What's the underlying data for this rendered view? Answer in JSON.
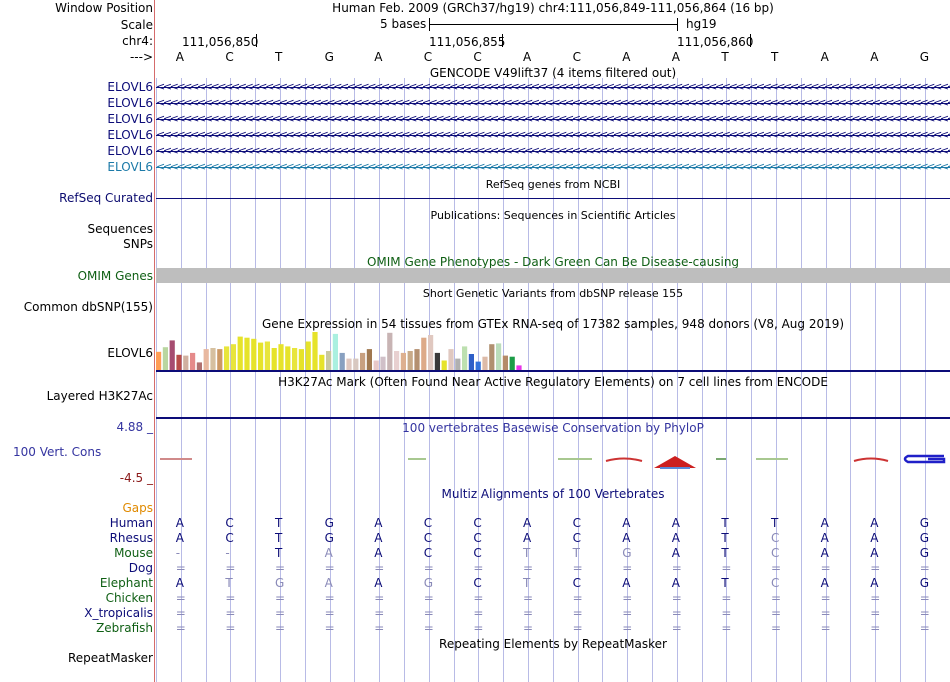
{
  "header": {
    "window_position_label": "Window Position",
    "window_position_value": "Human Feb. 2009 (GRCh37/hg19)   chr4:111,056,849-111,056,864 (16 bp)",
    "scale_label": "Scale",
    "scale_text": "5 bases",
    "scale_assembly": "hg19",
    "chrom_label": "chr4:",
    "ticks": [
      "111,056,850",
      "111,056,855",
      "111,056,860"
    ],
    "strand_label": "--->",
    "bases": [
      "A",
      "C",
      "T",
      "G",
      "A",
      "C",
      "C",
      "A",
      "C",
      "A",
      "A",
      "T",
      "T",
      "A",
      "A",
      "G"
    ]
  },
  "tracks": {
    "gencode": {
      "title": "GENCODE V49lift37 (4 items filtered out)",
      "items": [
        {
          "name": "ELOVL6",
          "color": "#0c0c78"
        },
        {
          "name": "ELOVL6",
          "color": "#0c0c78"
        },
        {
          "name": "ELOVL6",
          "color": "#0c0c78"
        },
        {
          "name": "ELOVL6",
          "color": "#0c0c78"
        },
        {
          "name": "ELOVL6",
          "color": "#0c0c78"
        },
        {
          "name": "ELOVL6",
          "color": "#1c7aa8"
        }
      ]
    },
    "refseq": {
      "title": "RefSeq genes from NCBI",
      "label": "RefSeq Curated"
    },
    "publications": {
      "title": "Publications: Sequences in Scientific Articles",
      "labels": [
        "Sequences",
        "SNPs"
      ]
    },
    "omim": {
      "title": "OMIM Gene Phenotypes - Dark Green Can Be Disease-causing",
      "label": "OMIM Genes"
    },
    "dbsnp": {
      "title": "Short Genetic Variants from dbSNP release 155",
      "label": "Common dbSNP(155)"
    },
    "gtex": {
      "title": "Gene Expression in 54 tissues from GTEx RNA-seq of 17382 samples, 948 donors (V8, Aug 2019)",
      "label": "ELOVL6",
      "values": [
        0.48,
        0.6,
        0.78,
        0.4,
        0.38,
        0.45,
        0.2,
        0.55,
        0.58,
        0.55,
        0.62,
        0.68,
        0.88,
        0.85,
        0.82,
        0.72,
        0.75,
        0.58,
        0.68,
        0.62,
        0.58,
        0.55,
        0.75,
        1.0,
        0.4,
        0.5,
        0.95,
        0.45,
        0.3,
        0.3,
        0.45,
        0.55,
        0.25,
        0.35,
        0.98,
        0.5,
        0.45,
        0.5,
        0.55,
        0.85,
        0.92,
        0.45,
        0.25,
        0.55,
        0.3,
        0.62,
        0.42,
        0.22,
        0.35,
        0.68,
        0.7,
        0.38,
        0.35,
        0.12
      ],
      "colors": [
        "#ff9d55",
        "#b9d6a0",
        "#a64c70",
        "#b84c48",
        "#d0b0a0",
        "#e58a8a",
        "#b07070",
        "#e8b8a0",
        "#d6c0a0",
        "#cc9966",
        "#e8e53c",
        "#e8e53c",
        "#e6e32a",
        "#e6e32a",
        "#e6e32a",
        "#e6e32a",
        "#e8e53c",
        "#e6e32a",
        "#e6e32a",
        "#e6e32a",
        "#e8e53c",
        "#e6e32a",
        "#e6e32a",
        "#e6e32a",
        "#e6e32a",
        "#c8c8a0",
        "#aaf0e0",
        "#88a0c0",
        "#e0c8c0",
        "#d8c8c0",
        "#c8a080",
        "#a07850",
        "#e8c8c8",
        "#d0c0c8",
        "#c8b4b4",
        "#e8d0d0",
        "#ddb090",
        "#c8aa88",
        "#b49070",
        "#ddaa88",
        "#e0c8c0",
        "#3a3a3a",
        "#e6e32a",
        "#e0c8c0",
        "#b0b0b0",
        "#bde0b0",
        "#2e5fc8",
        "#3373dc",
        "#ddbba8",
        "#b09070",
        "#bbddbb",
        "#b48a68",
        "#1c9c48",
        "#e834e8"
      ]
    },
    "h3k27ac": {
      "title": "H3K27Ac Mark (Often Found Near Active Regulatory Elements) on 7 cell lines from ENCODE",
      "label": "Layered H3K27Ac"
    },
    "phylop": {
      "title": "100 vertebrates Basewise Conservation by PhyloP",
      "label": "100 Vert. Cons",
      "max_label": "4.88 _",
      "min_label": "-4.5 _"
    },
    "multiz": {
      "title": "Multiz Alignments of 100 Vertebrates",
      "gaps_label": "Gaps",
      "species": [
        {
          "name": "Human",
          "color": "#0c0c78",
          "seq": [
            "A",
            "C",
            "T",
            "G",
            "A",
            "C",
            "C",
            "A",
            "C",
            "A",
            "A",
            "T",
            "T",
            "A",
            "A",
            "G"
          ],
          "faint": []
        },
        {
          "name": "Rhesus",
          "color": "#0c0c78",
          "seq": [
            "A",
            "C",
            "T",
            "G",
            "A",
            "C",
            "C",
            "A",
            "C",
            "A",
            "A",
            "T",
            "C",
            "A",
            "A",
            "G"
          ],
          "faint": [
            12
          ]
        },
        {
          "name": "Mouse",
          "color": "#0f5f14",
          "seq": [
            "-",
            "-",
            "T",
            "A",
            "A",
            "C",
            "C",
            "T",
            "T",
            "G",
            "A",
            "T",
            "C",
            "A",
            "A",
            "G"
          ],
          "faint": [
            0,
            1,
            3,
            7,
            8,
            9,
            12
          ]
        },
        {
          "name": "Dog",
          "color": "#0c0c78",
          "seq": [
            "=",
            "=",
            "=",
            "=",
            "=",
            "=",
            "=",
            "=",
            "=",
            "=",
            "=",
            "=",
            "=",
            "=",
            "=",
            "="
          ],
          "faint": []
        },
        {
          "name": "Elephant",
          "color": "#0f5f14",
          "seq": [
            "A",
            "T",
            "G",
            "A",
            "A",
            "G",
            "C",
            "T",
            "C",
            "A",
            "A",
            "T",
            "C",
            "A",
            "A",
            "G"
          ],
          "faint": [
            1,
            2,
            3,
            5,
            7,
            12
          ]
        },
        {
          "name": "Chicken",
          "color": "#0f5f14",
          "seq": [
            "=",
            "=",
            "=",
            "=",
            "=",
            "=",
            "=",
            "=",
            "=",
            "=",
            "=",
            "=",
            "=",
            "=",
            "=",
            "="
          ],
          "faint": []
        },
        {
          "name": "X_tropicalis",
          "color": "#0c0c78",
          "seq": [
            "=",
            "=",
            "=",
            "=",
            "=",
            "=",
            "=",
            "=",
            "=",
            "=",
            "=",
            "=",
            "=",
            "=",
            "=",
            "="
          ],
          "faint": []
        },
        {
          "name": "Zebrafish",
          "color": "#0f5f14",
          "seq": [
            "=",
            "=",
            "=",
            "=",
            "=",
            "=",
            "=",
            "=",
            "=",
            "=",
            "=",
            "=",
            "=",
            "=",
            "=",
            "="
          ],
          "faint": []
        }
      ]
    },
    "repeatmasker": {
      "title": "Repeating Elements by RepeatMasker",
      "label": "RepeatMasker"
    }
  },
  "colors": {
    "navy": "#0c0c78",
    "green": "#0f5f14",
    "gaps": "#e08a00",
    "red_label": "#8b1a1a",
    "phylop_blue": "#3434a0",
    "omim_bar": "#bebebe",
    "grid": "#b8bbe6"
  }
}
